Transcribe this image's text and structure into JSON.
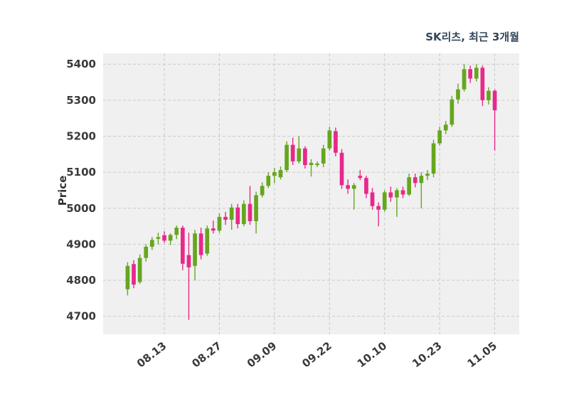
{
  "chart": {
    "title": "SK리츠, 최근 3개월",
    "ylabel": "Price"
  },
  "chart_data": {
    "type": "candlestick",
    "title": "SK리츠, 최근 3개월",
    "xlabel": "",
    "ylabel": "Price",
    "ylim": [
      4650,
      5430
    ],
    "y_ticks": [
      4700,
      4800,
      4900,
      5000,
      5100,
      5200,
      5300,
      5400
    ],
    "x_ticks": [
      {
        "index": 6,
        "label": "08.13"
      },
      {
        "index": 15,
        "label": "08.27"
      },
      {
        "index": 24,
        "label": "09.09"
      },
      {
        "index": 33,
        "label": "09.22"
      },
      {
        "index": 42,
        "label": "10.10"
      },
      {
        "index": 51,
        "label": "10.23"
      },
      {
        "index": 60,
        "label": "11.05"
      }
    ],
    "grid": true,
    "legend": false,
    "colors": {
      "up": "#66a61e",
      "down": "#e7298a",
      "plot_bg": "#f0f0f0",
      "grid": "#c9c9c9",
      "tick_text": "#3a3a3a",
      "title_text": "#33465a"
    },
    "candles_format": [
      "open",
      "high",
      "low",
      "close"
    ],
    "candles": [
      [
        4775,
        4850,
        4758,
        4840
      ],
      [
        4845,
        4856,
        4778,
        4788
      ],
      [
        4795,
        4872,
        4790,
        4862
      ],
      [
        4862,
        4900,
        4852,
        4893
      ],
      [
        4893,
        4920,
        4884,
        4912
      ],
      [
        4915,
        4932,
        4900,
        4920
      ],
      [
        4925,
        4936,
        4904,
        4910
      ],
      [
        4910,
        4930,
        4898,
        4926
      ],
      [
        4926,
        4952,
        4914,
        4946
      ],
      [
        4946,
        4952,
        4828,
        4846
      ],
      [
        4870,
        4932,
        4690,
        4836
      ],
      [
        4840,
        4940,
        4800,
        4930
      ],
      [
        4930,
        4946,
        4858,
        4870
      ],
      [
        4874,
        4952,
        4868,
        4944
      ],
      [
        4944,
        4966,
        4930,
        4938
      ],
      [
        4938,
        4986,
        4932,
        4976
      ],
      [
        4976,
        4990,
        4954,
        4968
      ],
      [
        4968,
        5012,
        4940,
        5002
      ],
      [
        5002,
        5012,
        4944,
        4956
      ],
      [
        4956,
        5022,
        4950,
        5012
      ],
      [
        5012,
        5062,
        4954,
        4964
      ],
      [
        4964,
        5046,
        4930,
        5036
      ],
      [
        5036,
        5072,
        5030,
        5062
      ],
      [
        5062,
        5100,
        5056,
        5090
      ],
      [
        5090,
        5112,
        5070,
        5100
      ],
      [
        5086,
        5116,
        5080,
        5106
      ],
      [
        5106,
        5186,
        5100,
        5176
      ],
      [
        5176,
        5196,
        5120,
        5130
      ],
      [
        5130,
        5200,
        5124,
        5166
      ],
      [
        5166,
        5172,
        5110,
        5120
      ],
      [
        5120,
        5136,
        5088,
        5126
      ],
      [
        5120,
        5130,
        5114,
        5124
      ],
      [
        5124,
        5176,
        5114,
        5166
      ],
      [
        5166,
        5226,
        5160,
        5216
      ],
      [
        5214,
        5224,
        5144,
        5154
      ],
      [
        5154,
        5164,
        5054,
        5064
      ],
      [
        5064,
        5080,
        5040,
        5054
      ],
      [
        5054,
        5070,
        4996,
        5064
      ],
      [
        5090,
        5106,
        5078,
        5084
      ],
      [
        5084,
        5090,
        5028,
        5040
      ],
      [
        5044,
        5056,
        4996,
        5006
      ],
      [
        5006,
        5016,
        4950,
        4996
      ],
      [
        4996,
        5050,
        4990,
        5044
      ],
      [
        5044,
        5060,
        5018,
        5030
      ],
      [
        5030,
        5056,
        4976,
        5050
      ],
      [
        5050,
        5060,
        5028,
        5038
      ],
      [
        5038,
        5096,
        5034,
        5086
      ],
      [
        5086,
        5096,
        5058,
        5070
      ],
      [
        5070,
        5100,
        5000,
        5090
      ],
      [
        5090,
        5106,
        5078,
        5096
      ],
      [
        5096,
        5190,
        5086,
        5180
      ],
      [
        5180,
        5226,
        5174,
        5216
      ],
      [
        5216,
        5242,
        5206,
        5232
      ],
      [
        5232,
        5312,
        5226,
        5302
      ],
      [
        5302,
        5346,
        5290,
        5330
      ],
      [
        5330,
        5400,
        5324,
        5386
      ],
      [
        5386,
        5396,
        5348,
        5360
      ],
      [
        5360,
        5400,
        5352,
        5390
      ],
      [
        5390,
        5396,
        5284,
        5300
      ],
      [
        5300,
        5336,
        5288,
        5326
      ],
      [
        5326,
        5330,
        5160,
        5272
      ]
    ]
  }
}
